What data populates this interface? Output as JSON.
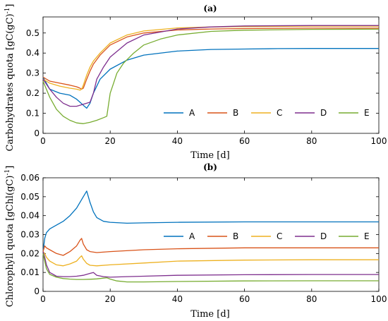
{
  "chart_data": [
    {
      "type": "line",
      "panel_label": "(a)",
      "xlabel": "Time [d]",
      "ylabel_main": "Carbohydrates quota [gC(gC)",
      "ylabel_sup": "-1",
      "ylabel_tail": "]",
      "xlim": [
        0,
        100
      ],
      "ylim": [
        0,
        0.58
      ],
      "xticks": [
        0,
        20,
        40,
        60,
        80,
        100
      ],
      "yticks": [
        0,
        0.1,
        0.2,
        0.3,
        0.4,
        0.5
      ],
      "ytick_labels": [
        "0",
        "0.1",
        "0.2",
        "0.3",
        "0.4",
        "0.5"
      ],
      "legend_placement": "bottom-right",
      "grid": false,
      "series": [
        {
          "name": "A",
          "color": "#0072BD",
          "x": [
            0,
            2,
            5,
            8,
            10,
            11,
            12,
            13,
            14,
            15,
            17,
            20,
            25,
            30,
            40,
            50,
            60,
            70,
            80,
            90,
            100
          ],
          "y": [
            0.28,
            0.22,
            0.2,
            0.19,
            0.17,
            0.155,
            0.14,
            0.125,
            0.15,
            0.2,
            0.27,
            0.32,
            0.365,
            0.39,
            0.41,
            0.418,
            0.42,
            0.422,
            0.423,
            0.423,
            0.423
          ]
        },
        {
          "name": "B",
          "color": "#D95319",
          "x": [
            0,
            2,
            5,
            8,
            10,
            11,
            11.5,
            12,
            13,
            14,
            15,
            17,
            20,
            25,
            30,
            40,
            50,
            60,
            80,
            100
          ],
          "y": [
            0.28,
            0.26,
            0.25,
            0.24,
            0.232,
            0.225,
            0.22,
            0.225,
            0.27,
            0.31,
            0.345,
            0.39,
            0.44,
            0.48,
            0.5,
            0.515,
            0.52,
            0.522,
            0.524,
            0.524
          ]
        },
        {
          "name": "C",
          "color": "#EDB120",
          "x": [
            0,
            2,
            5,
            8,
            10,
            11,
            11.5,
            12,
            13,
            14,
            15,
            17,
            20,
            25,
            30,
            40,
            50,
            60,
            80,
            100
          ],
          "y": [
            0.27,
            0.25,
            0.235,
            0.225,
            0.22,
            0.215,
            0.22,
            0.24,
            0.29,
            0.33,
            0.36,
            0.4,
            0.45,
            0.49,
            0.51,
            0.525,
            0.53,
            0.532,
            0.534,
            0.534
          ]
        },
        {
          "name": "D",
          "color": "#7E2F8E",
          "x": [
            0,
            2,
            4,
            6,
            8,
            10,
            12,
            14,
            15,
            16,
            18,
            20,
            25,
            30,
            40,
            50,
            60,
            80,
            100
          ],
          "y": [
            0.27,
            0.22,
            0.18,
            0.15,
            0.135,
            0.135,
            0.145,
            0.155,
            0.2,
            0.27,
            0.33,
            0.38,
            0.45,
            0.49,
            0.52,
            0.53,
            0.535,
            0.537,
            0.537
          ]
        },
        {
          "name": "E",
          "color": "#77AC30",
          "x": [
            0,
            2,
            4,
            6,
            8,
            10,
            12,
            14,
            16,
            18,
            19,
            20,
            21,
            22,
            24,
            27,
            30,
            35,
            40,
            50,
            60,
            80,
            100
          ],
          "y": [
            0.26,
            0.18,
            0.12,
            0.085,
            0.065,
            0.052,
            0.048,
            0.055,
            0.065,
            0.078,
            0.085,
            0.2,
            0.25,
            0.3,
            0.35,
            0.4,
            0.44,
            0.47,
            0.49,
            0.508,
            0.514,
            0.518,
            0.519
          ]
        }
      ]
    },
    {
      "type": "line",
      "panel_label": "(b)",
      "xlabel": "Time [d]",
      "ylabel_main": "Chlorophyll quota [gChl(gC)",
      "ylabel_sup": "-1",
      "ylabel_tail": "]",
      "xlim": [
        0,
        100
      ],
      "ylim": [
        0,
        0.06
      ],
      "xticks": [
        0,
        20,
        40,
        60,
        80,
        100
      ],
      "yticks": [
        0,
        0.01,
        0.02,
        0.03,
        0.04,
        0.05,
        0.06
      ],
      "ytick_labels": [
        "0",
        "0.01",
        "0.02",
        "0.03",
        "0.04",
        "0.05",
        "0.06"
      ],
      "legend_placement": "right",
      "grid": false,
      "series": [
        {
          "name": "A",
          "color": "#0072BD",
          "x": [
            0,
            0.5,
            1,
            2,
            4,
            6,
            8,
            10,
            12,
            13,
            14,
            15,
            16,
            18,
            20,
            25,
            30,
            40,
            60,
            80,
            100
          ],
          "y": [
            0.021,
            0.028,
            0.031,
            0.033,
            0.035,
            0.037,
            0.04,
            0.044,
            0.05,
            0.053,
            0.047,
            0.042,
            0.039,
            0.037,
            0.0365,
            0.036,
            0.0362,
            0.0365,
            0.0367,
            0.0367,
            0.0367
          ]
        },
        {
          "name": "B",
          "color": "#D95319",
          "x": [
            0,
            0.5,
            1,
            2,
            4,
            6,
            8,
            10,
            11,
            11.5,
            12,
            13,
            14,
            16,
            20,
            30,
            40,
            60,
            80,
            100
          ],
          "y": [
            0.021,
            0.024,
            0.023,
            0.022,
            0.02,
            0.019,
            0.021,
            0.024,
            0.027,
            0.028,
            0.025,
            0.022,
            0.021,
            0.0205,
            0.021,
            0.022,
            0.0225,
            0.023,
            0.023,
            0.023
          ]
        },
        {
          "name": "C",
          "color": "#EDB120",
          "x": [
            0,
            0.5,
            1,
            2,
            4,
            6,
            8,
            10,
            11,
            11.5,
            12,
            13,
            14,
            16,
            20,
            30,
            40,
            60,
            80,
            100
          ],
          "y": [
            0.021,
            0.02,
            0.018,
            0.016,
            0.014,
            0.0135,
            0.0145,
            0.016,
            0.018,
            0.0188,
            0.017,
            0.0148,
            0.0138,
            0.0135,
            0.014,
            0.015,
            0.016,
            0.0165,
            0.0167,
            0.0167
          ]
        },
        {
          "name": "D",
          "color": "#7E2F8E",
          "x": [
            0,
            0.5,
            1,
            2,
            4,
            6,
            8,
            10,
            12,
            14,
            15,
            16,
            18,
            20,
            25,
            30,
            40,
            60,
            80,
            100
          ],
          "y": [
            0.021,
            0.018,
            0.014,
            0.01,
            0.008,
            0.0078,
            0.0078,
            0.008,
            0.0085,
            0.0095,
            0.01,
            0.0085,
            0.0078,
            0.0075,
            0.0078,
            0.008,
            0.0085,
            0.0088,
            0.0089,
            0.0089
          ]
        },
        {
          "name": "E",
          "color": "#77AC30",
          "x": [
            0,
            0.5,
            1,
            2,
            4,
            6,
            8,
            10,
            12,
            14,
            16,
            18,
            19,
            20,
            22,
            25,
            30,
            40,
            60,
            80,
            100
          ],
          "y": [
            0.02,
            0.016,
            0.012,
            0.009,
            0.0075,
            0.0068,
            0.0065,
            0.0063,
            0.0063,
            0.0064,
            0.0066,
            0.007,
            0.0072,
            0.0065,
            0.0055,
            0.005,
            0.005,
            0.0052,
            0.0055,
            0.0056,
            0.0056
          ]
        }
      ]
    }
  ]
}
